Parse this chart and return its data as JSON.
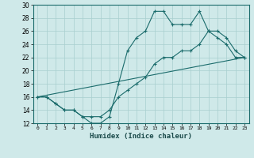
{
  "xlabel": "Humidex (Indice chaleur)",
  "background_color": "#cfe9e9",
  "grid_color": "#a8cfcf",
  "line_color": "#1a6b6b",
  "xlim": [
    -0.5,
    23.5
  ],
  "ylim": [
    12,
    30
  ],
  "xticks": [
    0,
    1,
    2,
    3,
    4,
    5,
    6,
    7,
    8,
    9,
    10,
    11,
    12,
    13,
    14,
    15,
    16,
    17,
    18,
    19,
    20,
    21,
    22,
    23
  ],
  "yticks": [
    12,
    14,
    16,
    18,
    20,
    22,
    24,
    26,
    28,
    30
  ],
  "series1_x": [
    0,
    1,
    2,
    3,
    4,
    5,
    6,
    7,
    8,
    9,
    10,
    11,
    12,
    13,
    14,
    15,
    16,
    17,
    18,
    19,
    20,
    21,
    22,
    23
  ],
  "series1_y": [
    16,
    16,
    15,
    14,
    14,
    13,
    12,
    12,
    13,
    18,
    23,
    25,
    26,
    29,
    29,
    27,
    27,
    27,
    29,
    26,
    25,
    24,
    22,
    22
  ],
  "series2_x": [
    0,
    1,
    2,
    3,
    4,
    5,
    6,
    7,
    8,
    9,
    10,
    11,
    12,
    13,
    14,
    15,
    16,
    17,
    18,
    19,
    20,
    21,
    22,
    23
  ],
  "series2_y": [
    16,
    16,
    15,
    14,
    14,
    13,
    13,
    13,
    14,
    16,
    17,
    18,
    19,
    21,
    22,
    22,
    23,
    23,
    24,
    26,
    26,
    25,
    23,
    22
  ],
  "series3_x": [
    0,
    23
  ],
  "series3_y": [
    16,
    22
  ]
}
